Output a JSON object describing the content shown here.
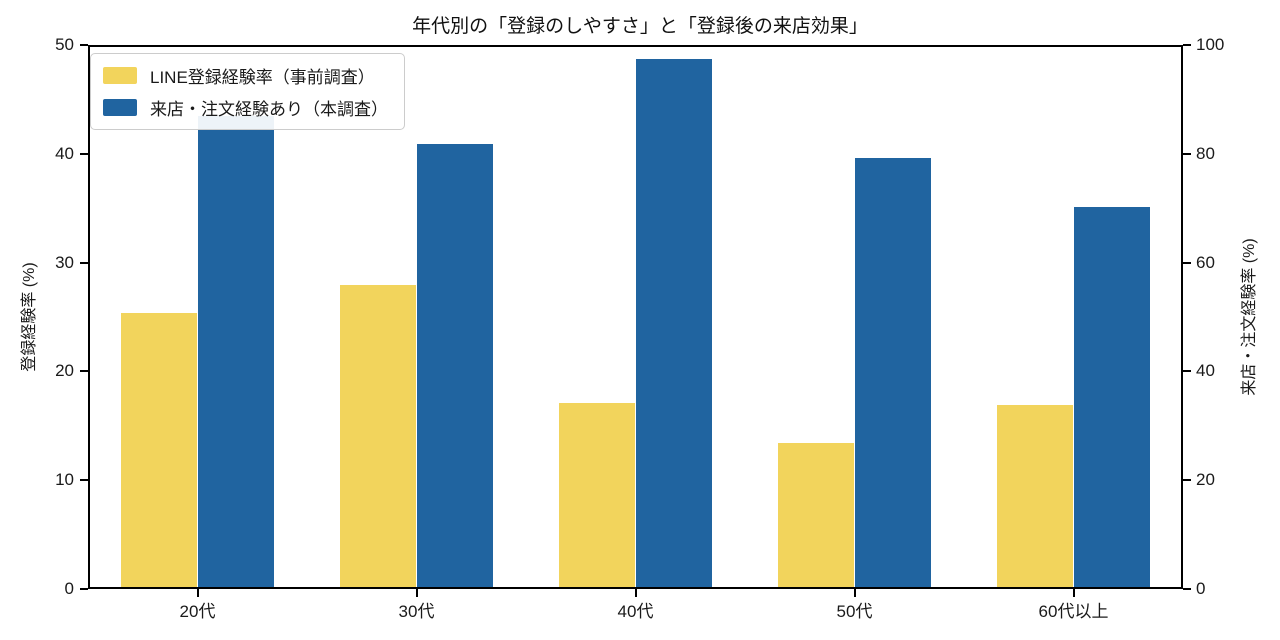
{
  "chart_data": {
    "type": "bar",
    "title": "年代別の「登録のしやすさ」と「登録後の来店効果」",
    "categories": [
      "20代",
      "30代",
      "40代",
      "50代",
      "60代以上"
    ],
    "series": [
      {
        "name": "LINE登録経験率（事前調査）",
        "axis": "left",
        "color": "#f2d45c",
        "values": [
          25.4,
          27.9,
          17.1,
          13.4,
          16.9
        ]
      },
      {
        "name": "来店・注文経験あり（本調査）",
        "axis": "right",
        "color": "#2064a0",
        "values": [
          87.0,
          81.8,
          97.5,
          79.2,
          70.3
        ]
      }
    ],
    "left_axis": {
      "label": "登録経験率 (%)",
      "min": 0,
      "max": 50,
      "ticks": [
        0,
        10,
        20,
        30,
        40,
        50
      ]
    },
    "right_axis": {
      "label": "来店・注文経験率 (%)",
      "min": 0,
      "max": 100,
      "ticks": [
        0,
        20,
        40,
        60,
        80,
        100
      ]
    },
    "legend_position": "upper left",
    "grid": false,
    "bar_width_fraction": 0.35
  }
}
